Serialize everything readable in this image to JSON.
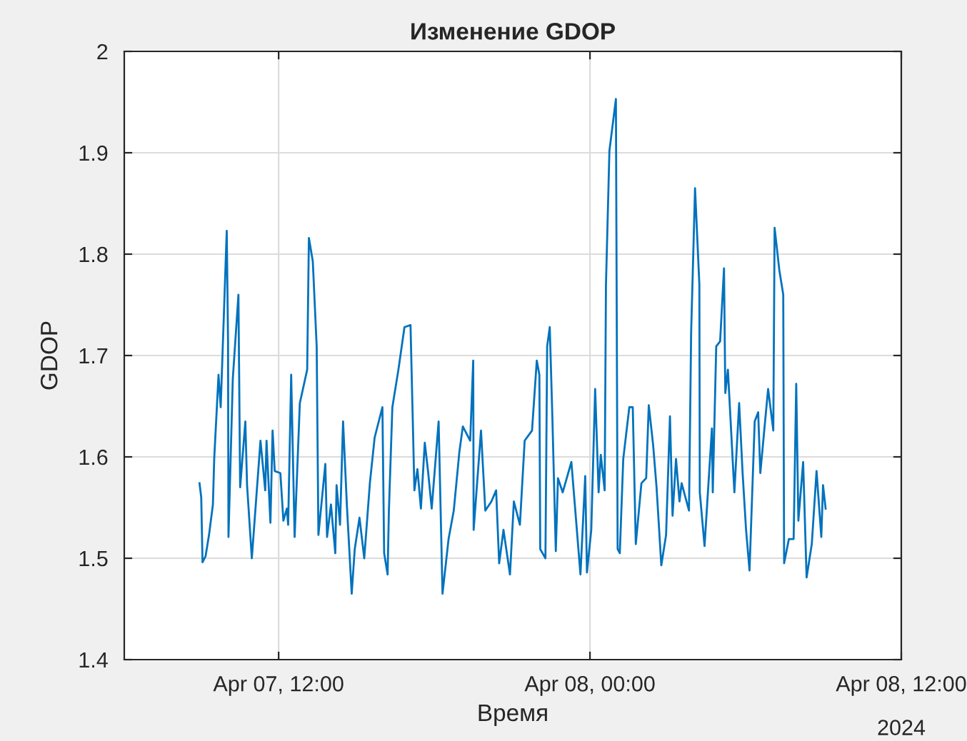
{
  "chart_data": {
    "type": "line",
    "title": "Изменение GDOP",
    "xlabel": "Время",
    "ylabel": "GDOP",
    "annotations": [
      "2024"
    ],
    "xlim": [
      "2024-04-07T06:03",
      "2024-04-08T12:00"
    ],
    "xticks": [
      {
        "value": "2024-04-07T12:00",
        "label": "Apr 07, 12:00"
      },
      {
        "value": "2024-04-08T00:00",
        "label": "Apr 08, 00:00"
      },
      {
        "value": "2024-04-08T12:00",
        "label": "Apr 08, 12:00"
      }
    ],
    "ylim": [
      1.4,
      2
    ],
    "yticks": [
      1.4,
      1.5,
      1.6,
      1.7,
      1.8,
      1.9,
      2
    ],
    "grid": true,
    "line_style": "solid",
    "marker": "none",
    "x": [
      "2024-04-07T08:57",
      "2024-04-07T09:01",
      "2024-04-07T09:04",
      "2024-04-07T09:11",
      "2024-04-07T09:19",
      "2024-04-07T09:28",
      "2024-04-07T09:31",
      "2024-04-07T09:41",
      "2024-04-07T09:46",
      "2024-04-07T10:00",
      "2024-04-07T10:03",
      "2024-04-07T10:04",
      "2024-04-07T10:14",
      "2024-04-07T10:27",
      "2024-04-07T10:31",
      "2024-04-07T10:43",
      "2024-04-07T10:47",
      "2024-04-07T10:58",
      "2024-04-07T11:18",
      "2024-04-07T11:29",
      "2024-04-07T11:32",
      "2024-04-07T11:41",
      "2024-04-07T11:46",
      "2024-04-07T11:51",
      "2024-04-07T12:04",
      "2024-04-07T12:11",
      "2024-04-07T12:19",
      "2024-04-07T12:22",
      "2024-04-07T12:29",
      "2024-04-07T12:37",
      "2024-04-07T12:49",
      "2024-04-07T13:06",
      "2024-04-07T13:10",
      "2024-04-07T13:19",
      "2024-04-07T13:28",
      "2024-04-07T13:32",
      "2024-04-07T13:48",
      "2024-04-07T13:52",
      "2024-04-07T14:01",
      "2024-04-07T14:11",
      "2024-04-07T14:14",
      "2024-04-07T14:22",
      "2024-04-07T14:29",
      "2024-04-07T14:38",
      "2024-04-07T14:49",
      "2024-04-07T14:56",
      "2024-04-07T15:07",
      "2024-04-07T15:18",
      "2024-04-07T15:31",
      "2024-04-07T15:42",
      "2024-04-07T16:00",
      "2024-04-07T16:04",
      "2024-04-07T16:12",
      "2024-04-07T16:15",
      "2024-04-07T16:23",
      "2024-04-07T16:37",
      "2024-04-07T16:51",
      "2024-04-07T17:05",
      "2024-04-07T17:10",
      "2024-04-07T17:14",
      "2024-04-07T17:21",
      "2024-04-07T17:29",
      "2024-04-07T17:38",
      "2024-04-07T17:46",
      "2024-04-07T17:54",
      "2024-04-07T18:10",
      "2024-04-07T18:19",
      "2024-04-07T18:33",
      "2024-04-07T18:45",
      "2024-04-07T18:58",
      "2024-04-07T19:06",
      "2024-04-07T19:23",
      "2024-04-07T19:30",
      "2024-04-07T19:31",
      "2024-04-07T19:48",
      "2024-04-07T19:58",
      "2024-04-07T20:12",
      "2024-04-07T20:23",
      "2024-04-07T20:30",
      "2024-04-07T20:40",
      "2024-04-07T20:55",
      "2024-04-07T21:04",
      "2024-04-07T21:18",
      "2024-04-07T21:29",
      "2024-04-07T21:46",
      "2024-04-07T21:57",
      "2024-04-07T22:03",
      "2024-04-07T22:05",
      "2024-04-07T22:17",
      "2024-04-07T22:21",
      "2024-04-07T22:27",
      "2024-04-07T22:33",
      "2024-04-07T22:41",
      "2024-04-07T22:46",
      "2024-04-07T22:57",
      "2024-04-07T23:17",
      "2024-04-07T23:38",
      "2024-04-07T23:49",
      "2024-04-07T23:53",
      "2024-04-08T00:03",
      "2024-04-08T00:12",
      "2024-04-08T00:20",
      "2024-04-08T00:25",
      "2024-04-08T00:34",
      "2024-04-08T00:37",
      "2024-04-08T00:45",
      "2024-04-08T01:00",
      "2024-04-08T01:04",
      "2024-04-08T01:09",
      "2024-04-08T01:17",
      "2024-04-08T01:31",
      "2024-04-08T01:39",
      "2024-04-08T01:46",
      "2024-04-08T01:59",
      "2024-04-08T02:10",
      "2024-04-08T02:16",
      "2024-04-08T02:26",
      "2024-04-08T02:34",
      "2024-04-08T02:45",
      "2024-04-08T02:56",
      "2024-04-08T03:05",
      "2024-04-08T03:11",
      "2024-04-08T03:19",
      "2024-04-08T03:27",
      "2024-04-08T03:32",
      "2024-04-08T03:49",
      "2024-04-08T03:54",
      "2024-04-08T04:03",
      "2024-04-08T04:13",
      "2024-04-08T04:14",
      "2024-04-08T04:25",
      "2024-04-08T04:42",
      "2024-04-08T04:44",
      "2024-04-08T04:52",
      "2024-04-08T05:01",
      "2024-04-08T05:10",
      "2024-04-08T05:13",
      "2024-04-08T05:19",
      "2024-04-08T05:34",
      "2024-04-08T05:45",
      "2024-04-08T05:53",
      "2024-04-08T06:01",
      "2024-04-08T06:09",
      "2024-04-08T06:21",
      "2024-04-08T06:29",
      "2024-04-08T06:34",
      "2024-04-08T06:43",
      "2024-04-08T06:52",
      "2024-04-08T07:04",
      "2024-04-08T07:07",
      "2024-04-08T07:18",
      "2024-04-08T07:27",
      "2024-04-08T07:29",
      "2024-04-08T07:40",
      "2024-04-08T07:51",
      "2024-04-08T07:57",
      "2024-04-08T08:02",
      "2024-04-08T08:13",
      "2024-04-08T08:21",
      "2024-04-08T08:33",
      "2024-04-08T08:44",
      "2024-04-08T08:55",
      "2024-04-08T08:59",
      "2024-04-08T09:05"
    ],
    "series": [
      {
        "color": "#0072bd",
        "values": [
          1.574,
          1.56,
          1.496,
          1.502,
          1.523,
          1.553,
          1.598,
          1.681,
          1.649,
          1.823,
          1.714,
          1.521,
          1.677,
          1.76,
          1.57,
          1.635,
          1.572,
          1.5,
          1.616,
          1.567,
          1.616,
          1.535,
          1.626,
          1.586,
          1.584,
          1.537,
          1.549,
          1.533,
          1.681,
          1.521,
          1.653,
          1.686,
          1.816,
          1.793,
          1.709,
          1.523,
          1.593,
          1.521,
          1.553,
          1.505,
          1.572,
          1.533,
          1.635,
          1.551,
          1.465,
          1.509,
          1.54,
          1.5,
          1.574,
          1.619,
          1.649,
          1.505,
          1.484,
          1.547,
          1.649,
          1.686,
          1.728,
          1.73,
          1.64,
          1.567,
          1.588,
          1.549,
          1.614,
          1.584,
          1.549,
          1.635,
          1.465,
          1.519,
          1.547,
          1.605,
          1.63,
          1.616,
          1.695,
          1.528,
          1.626,
          1.547,
          1.556,
          1.567,
          1.495,
          1.528,
          1.484,
          1.556,
          1.533,
          1.616,
          1.626,
          1.695,
          1.681,
          1.509,
          1.5,
          1.709,
          1.728,
          1.64,
          1.507,
          1.579,
          1.565,
          1.595,
          1.484,
          1.581,
          1.486,
          1.528,
          1.667,
          1.565,
          1.602,
          1.567,
          1.77,
          1.902,
          1.953,
          1.509,
          1.505,
          1.598,
          1.649,
          1.649,
          1.514,
          1.574,
          1.579,
          1.651,
          1.612,
          1.57,
          1.493,
          1.523,
          1.64,
          1.542,
          1.598,
          1.556,
          1.574,
          1.547,
          1.723,
          1.865,
          1.77,
          1.565,
          1.512,
          1.628,
          1.565,
          1.709,
          1.714,
          1.786,
          1.663,
          1.686,
          1.565,
          1.653,
          1.584,
          1.528,
          1.488,
          1.635,
          1.644,
          1.584,
          1.626,
          1.667,
          1.626,
          1.826,
          1.784,
          1.76,
          1.495,
          1.519,
          1.519,
          1.672,
          1.537,
          1.595,
          1.481,
          1.514,
          1.586,
          1.521,
          1.572,
          1.549
        ]
      }
    ]
  }
}
